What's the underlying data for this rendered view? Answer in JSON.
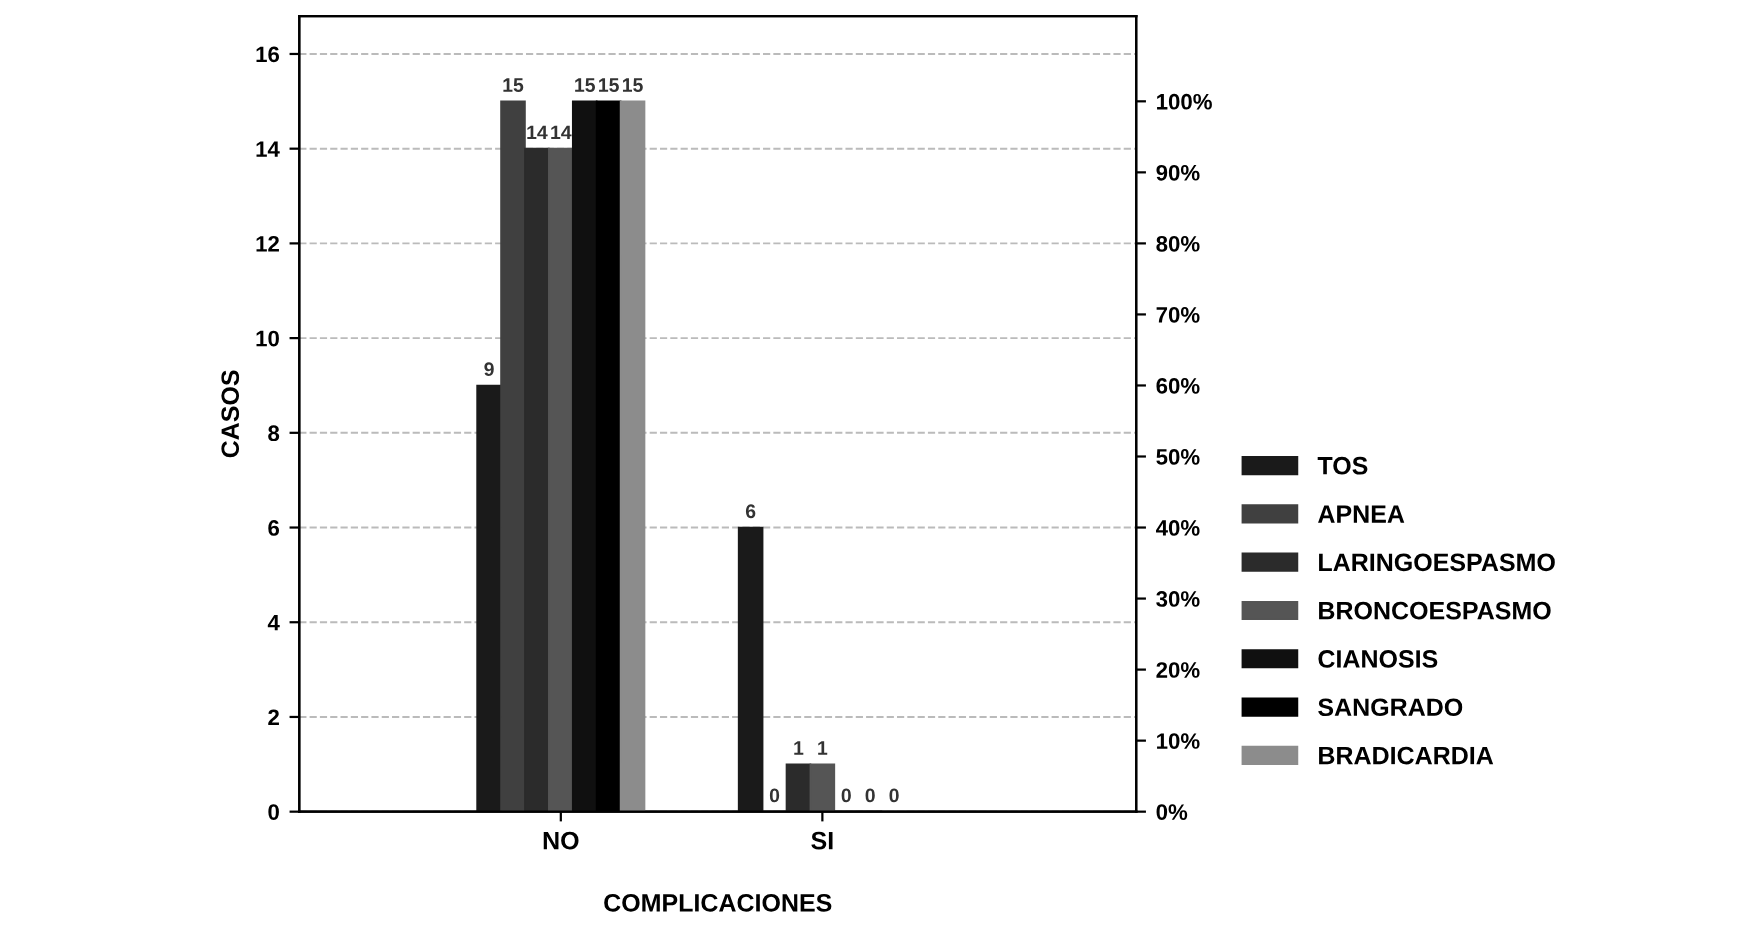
{
  "chart_data": {
    "type": "bar",
    "xlabel": "COMPLICACIONES",
    "ylabel": "CASOS",
    "categories": [
      "NO",
      "SI"
    ],
    "series": [
      {
        "name": "TOS",
        "color": "#1a1a1a",
        "values": [
          9,
          6
        ]
      },
      {
        "name": "APNEA",
        "color": "#404040",
        "values": [
          15,
          0
        ]
      },
      {
        "name": "LARINGOESPASMO",
        "color": "#2b2b2b",
        "values": [
          14,
          1
        ]
      },
      {
        "name": "BRONCOESPASMO",
        "color": "#555555",
        "values": [
          14,
          1
        ]
      },
      {
        "name": "CIANOSIS",
        "color": "#101010",
        "values": [
          15,
          0
        ]
      },
      {
        "name": "SANGRADO",
        "color": "#000000",
        "values": [
          15,
          0
        ]
      },
      {
        "name": "BRADICARDIA",
        "color": "#8c8c8c",
        "values": [
          15,
          0
        ]
      }
    ],
    "ylim": [
      0,
      16.8
    ],
    "yticks": [
      0,
      2,
      4,
      6,
      8,
      10,
      12,
      14,
      16
    ],
    "y2lim": [
      0,
      112
    ],
    "y2ticks": [
      {
        "value": 0,
        "label": "0%"
      },
      {
        "value": 10,
        "label": "10%"
      },
      {
        "value": 20,
        "label": "20%"
      },
      {
        "value": 30,
        "label": "30%"
      },
      {
        "value": 40,
        "label": "40%"
      },
      {
        "value": 50,
        "label": "50%"
      },
      {
        "value": 60,
        "label": "60%"
      },
      {
        "value": 70,
        "label": "70%"
      },
      {
        "value": 80,
        "label": "80%"
      },
      {
        "value": 90,
        "label": "90%"
      },
      {
        "value": 100,
        "label": "100%"
      }
    ],
    "data_labels": true,
    "grid": "y",
    "legend": "right"
  }
}
